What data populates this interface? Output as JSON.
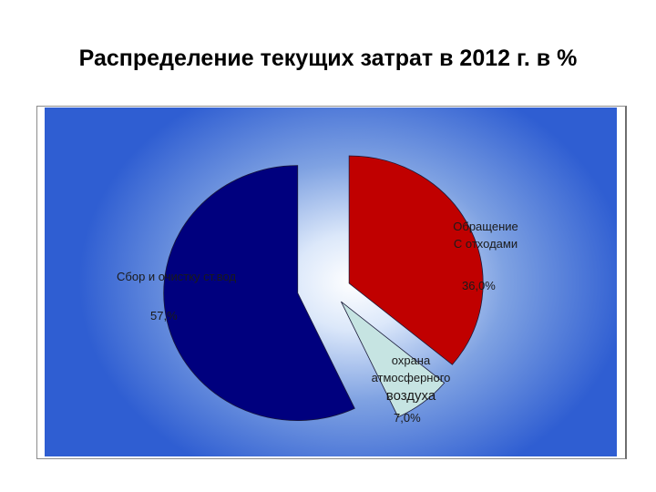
{
  "title": "Распределение текущих затрат в 2012 г. в %",
  "chart_data": {
    "type": "pie",
    "title": "Распределение текущих затрат в 2012 г. в %",
    "slices": [
      {
        "label_lines": [
          "Обращение",
          "С отходами"
        ],
        "value_label": "36,0%",
        "value": 36.0,
        "color": "#c00000"
      },
      {
        "label_lines": [
          "охрана",
          "атмосферного",
          "воздуха"
        ],
        "value_label": "7,0%",
        "value": 7.0,
        "color": "#c6e4e2"
      },
      {
        "label_lines": [
          "Сбор и очистку ст.вод"
        ],
        "value_label": "57,%",
        "value": 57.0,
        "color": "#00007e"
      }
    ],
    "exploded": true,
    "legend": "none",
    "background": "blue radial gradient"
  }
}
